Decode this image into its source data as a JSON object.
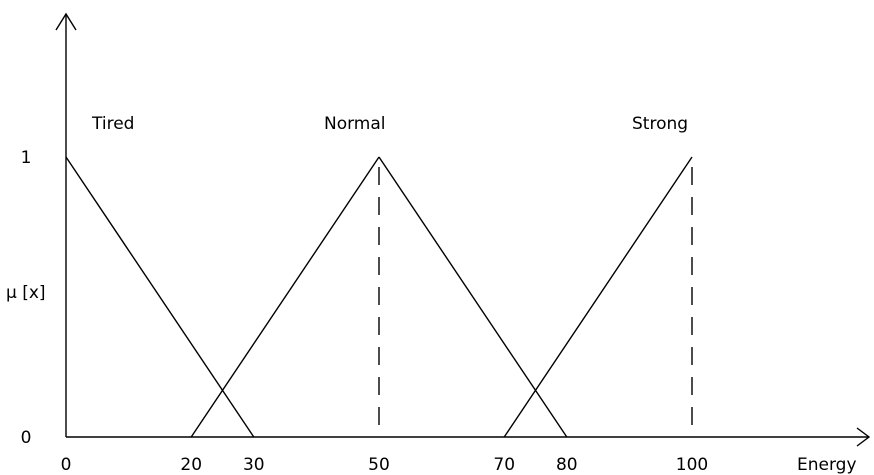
{
  "chart_data": {
    "type": "line",
    "xlabel": "Energy",
    "ylabel": "μ [x]",
    "xlim": [
      0,
      100
    ],
    "ylim": [
      0,
      1
    ],
    "x_ticks": [
      0,
      20,
      30,
      50,
      70,
      80,
      100
    ],
    "y_ticks": [
      0,
      1
    ],
    "grid": false,
    "series": [
      {
        "name": "Tired",
        "points": [
          [
            0,
            1
          ],
          [
            30,
            0
          ]
        ]
      },
      {
        "name": "Normal",
        "points": [
          [
            20,
            0
          ],
          [
            50,
            1
          ],
          [
            80,
            0
          ]
        ]
      },
      {
        "name": "Strong",
        "points": [
          [
            70,
            0
          ],
          [
            100,
            1
          ]
        ]
      }
    ],
    "peak_markers": [
      50,
      100
    ]
  },
  "colors": {
    "line": "#000000",
    "background": "#ffffff"
  }
}
